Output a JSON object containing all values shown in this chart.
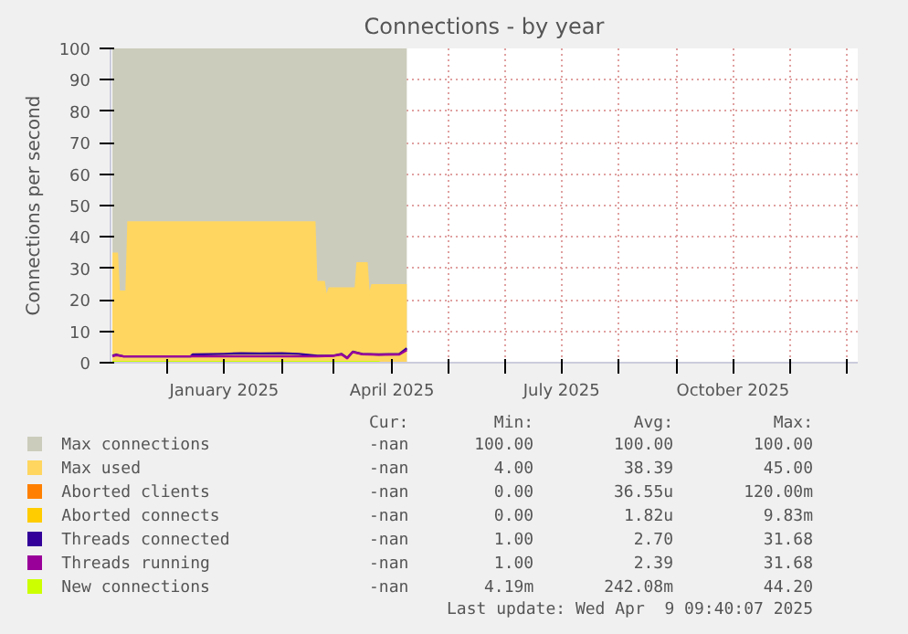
{
  "chart_data": {
    "type": "area",
    "title": "Connections - by year",
    "ylabel": "Connections per second",
    "xlim": [
      "2024-11-01",
      "2025-12-07"
    ],
    "xticks": [
      {
        "value": "2024-12-01",
        "label": null
      },
      {
        "value": "2025-01-01",
        "label": "January 2025"
      },
      {
        "value": "2025-02-01",
        "label": null
      },
      {
        "value": "2025-03-01",
        "label": null
      },
      {
        "value": "2025-04-01",
        "label": "April 2025"
      },
      {
        "value": "2025-05-01",
        "label": null
      },
      {
        "value": "2025-06-01",
        "label": null
      },
      {
        "value": "2025-07-01",
        "label": "July 2025"
      },
      {
        "value": "2025-08-01",
        "label": null
      },
      {
        "value": "2025-09-01",
        "label": null
      },
      {
        "value": "2025-10-01",
        "label": "October 2025"
      },
      {
        "value": "2025-11-01",
        "label": null
      },
      {
        "value": "2025-12-01",
        "label": null
      }
    ],
    "ylim": [
      0,
      100
    ],
    "yticks": [
      0,
      10,
      20,
      30,
      40,
      50,
      60,
      70,
      80,
      90,
      100
    ],
    "grid": true,
    "legend": "bottom",
    "series": [
      {
        "name": "Max connections",
        "color": "#ccccbc",
        "x": [
          "2024-11-02",
          "2025-04-09"
        ],
        "values": [
          100,
          100
        ]
      },
      {
        "name": "Max used",
        "color": "#ffd660",
        "x": [
          "2024-11-02",
          "2024-11-05",
          "2024-11-06",
          "2024-11-09",
          "2024-11-10",
          "2025-02-19",
          "2025-02-20",
          "2025-02-24",
          "2025-02-25",
          "2025-02-26",
          "2025-03-12",
          "2025-03-13",
          "2025-03-19",
          "2025-03-20",
          "2025-03-21",
          "2025-04-09"
        ],
        "values": [
          35,
          35,
          23,
          23,
          45,
          45,
          26,
          26,
          22,
          24,
          24,
          32,
          32,
          23,
          25,
          25
        ]
      },
      {
        "name": "Aborted clients",
        "color": "#ff8000"
      },
      {
        "name": "Aborted connects",
        "color": "#ffcc00"
      },
      {
        "name": "Threads connected",
        "color": "#330099",
        "type": "line",
        "x": [
          "2024-11-02",
          "2024-11-04",
          "2024-11-08",
          "2024-12-14",
          "2024-12-15",
          "2025-01-01",
          "2025-01-10",
          "2025-01-20",
          "2025-02-01",
          "2025-02-10",
          "2025-02-20",
          "2025-03-01",
          "2025-03-05",
          "2025-03-08",
          "2025-03-11",
          "2025-03-16",
          "2025-03-25",
          "2025-04-05",
          "2025-04-09"
        ],
        "values": [
          2.2,
          2.6,
          2.0,
          2.0,
          2.6,
          2.8,
          3.0,
          2.9,
          3.0,
          2.8,
          2.2,
          2.3,
          2.8,
          1.5,
          3.5,
          2.8,
          2.6,
          2.8,
          4.6
        ]
      },
      {
        "name": "Threads running",
        "color": "#990099",
        "type": "line",
        "x": [
          "2024-11-02",
          "2024-11-04",
          "2024-11-08",
          "2025-02-20",
          "2025-03-01",
          "2025-03-05",
          "2025-03-08",
          "2025-03-11",
          "2025-03-16",
          "2025-03-25",
          "2025-04-05",
          "2025-04-09"
        ],
        "values": [
          2.0,
          2.4,
          2.0,
          2.0,
          2.2,
          2.6,
          1.4,
          3.4,
          2.7,
          2.5,
          2.6,
          4.0
        ]
      },
      {
        "name": "New connections",
        "color": "#ccff00",
        "x": [
          "2024-11-02",
          "2025-03-25",
          "2025-03-26",
          "2025-04-09"
        ],
        "values": [
          0.6,
          0.6,
          0.3,
          0.3
        ]
      }
    ],
    "annotations": [
      "Cur: Min: Avg: Max:",
      "-nan 100.00 100.00 100.00",
      "-nan 4.00 38.39 45.00",
      "-nan 0.00 36.55u 120.00m",
      "-nan 0.00 1.82u 9.83m",
      "-nan 1.00 2.70 31.68",
      "-nan 1.00 2.39 31.68",
      "-nan 4.19m 242.08m 44.20",
      "Last update: Wed Apr  9 09:40:07 2025"
    ]
  }
}
